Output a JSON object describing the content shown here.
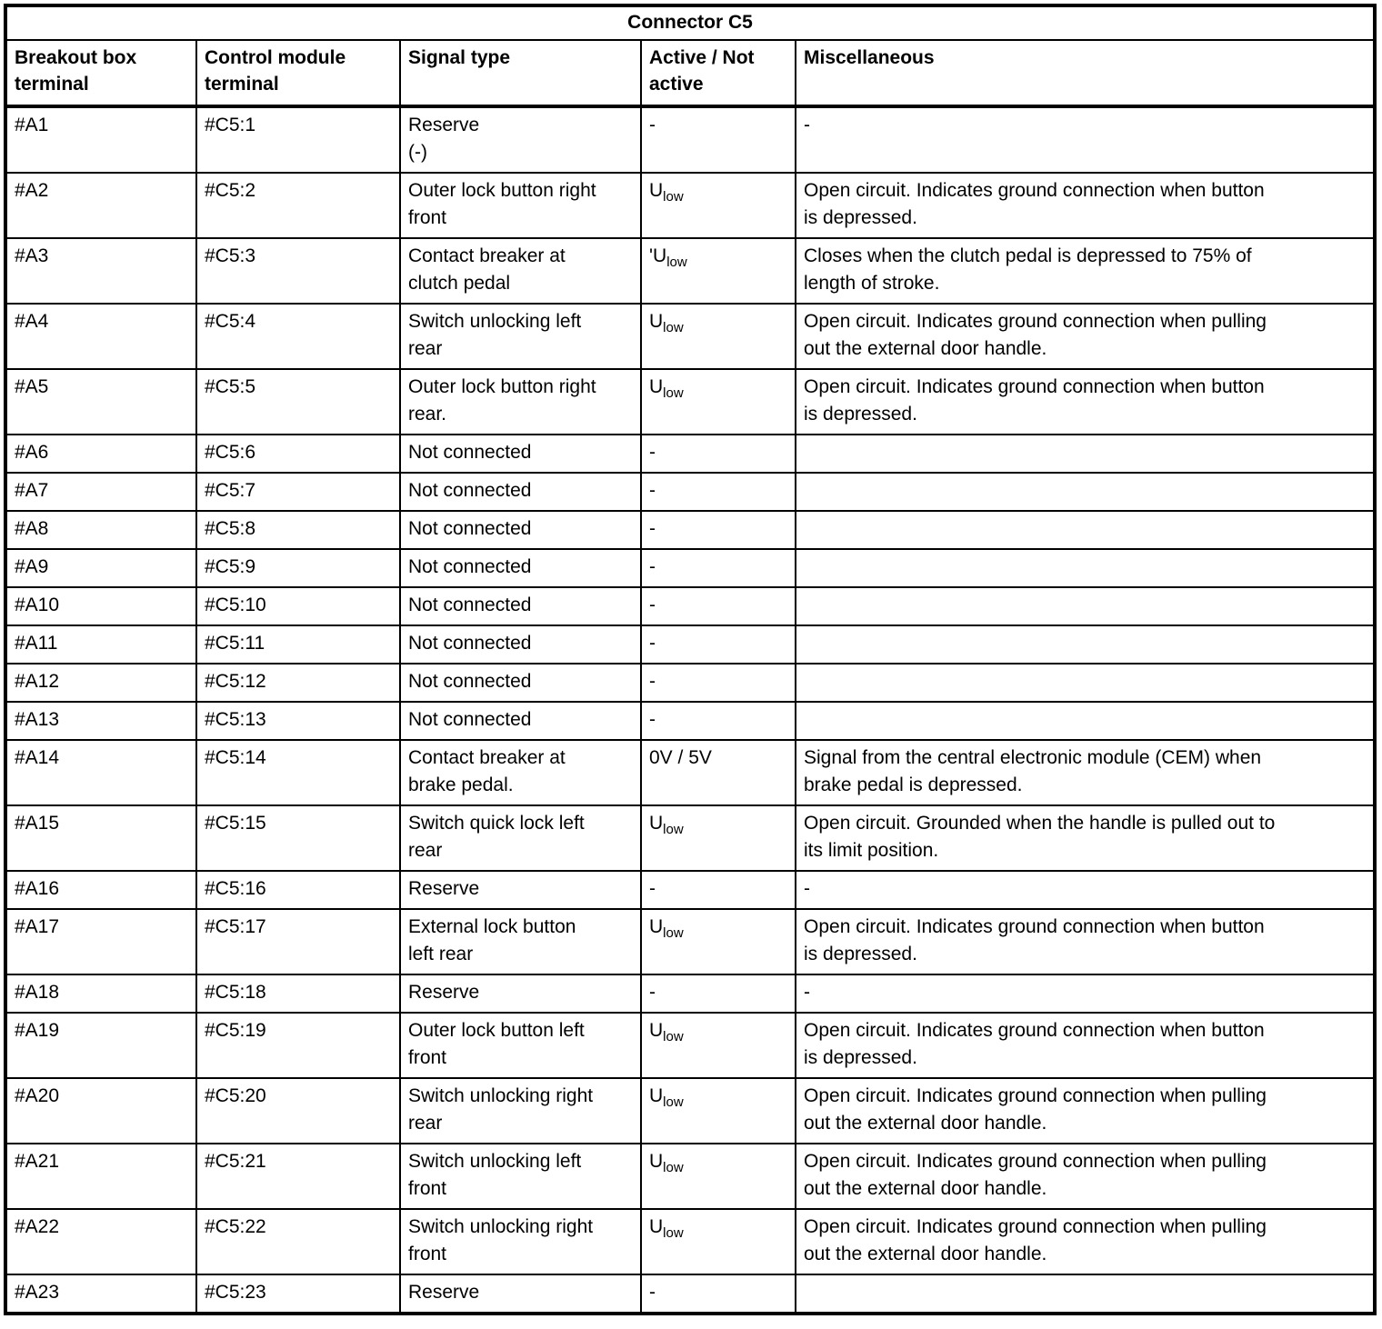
{
  "table": {
    "title": "Connector C5",
    "headers": [
      "Breakout box\nterminal",
      "Control module\nterminal",
      "Signal type",
      "Active / Not\nactive",
      "Miscellaneous"
    ],
    "rows": [
      {
        "breakout": "#A1",
        "module": "#C5:1",
        "signal": "Reserve\n(-)",
        "active": "-",
        "misc": "-"
      },
      {
        "breakout": "#A2",
        "module": "#C5:2",
        "signal": "Outer lock button right\nfront",
        "active": "U~low",
        "misc": "Open circuit. Indicates ground connection when button\nis depressed."
      },
      {
        "breakout": "#A3",
        "module": "#C5:3",
        "signal": "Contact breaker at\nclutch pedal",
        "active": "'U~low",
        "misc": "Closes when the clutch pedal is depressed to 75% of\nlength of stroke."
      },
      {
        "breakout": "#A4",
        "module": "#C5:4",
        "signal": "Switch unlocking left\nrear",
        "active": "U~low",
        "misc": "Open circuit. Indicates ground connection when pulling\nout the external door handle."
      },
      {
        "breakout": "#A5",
        "module": "#C5:5",
        "signal": "Outer lock button right\nrear.",
        "active": "U~low",
        "misc": "Open circuit. Indicates ground connection when button\nis depressed."
      },
      {
        "breakout": "#A6",
        "module": "#C5:6",
        "signal": "Not connected",
        "active": "-",
        "misc": ""
      },
      {
        "breakout": "#A7",
        "module": "#C5:7",
        "signal": "Not connected",
        "active": "-",
        "misc": ""
      },
      {
        "breakout": "#A8",
        "module": "#C5:8",
        "signal": "Not connected",
        "active": "-",
        "misc": ""
      },
      {
        "breakout": "#A9",
        "module": "#C5:9",
        "signal": "Not connected",
        "active": "-",
        "misc": ""
      },
      {
        "breakout": "#A10",
        "module": "#C5:10",
        "signal": "Not connected",
        "active": "-",
        "misc": ""
      },
      {
        "breakout": "#A11",
        "module": "#C5:11",
        "signal": "Not connected",
        "active": "-",
        "misc": ""
      },
      {
        "breakout": "#A12",
        "module": "#C5:12",
        "signal": "Not connected",
        "active": "-",
        "misc": ""
      },
      {
        "breakout": "#A13",
        "module": "#C5:13",
        "signal": "Not connected",
        "active": "-",
        "misc": ""
      },
      {
        "breakout": "#A14",
        "module": "#C5:14",
        "signal": "Contact breaker at\nbrake pedal.",
        "active": "0V / 5V",
        "misc": "Signal from the central electronic module (CEM) when\nbrake pedal is depressed."
      },
      {
        "breakout": "#A15",
        "module": "#C5:15",
        "signal": "Switch quick lock left\nrear",
        "active": "U~low",
        "misc": "Open circuit. Grounded when the handle is pulled out to\nits limit position."
      },
      {
        "breakout": "#A16",
        "module": "#C5:16",
        "signal": "Reserve",
        "active": "-",
        "misc": "-"
      },
      {
        "breakout": "#A17",
        "module": "#C5:17",
        "signal": "External lock button\nleft rear",
        "active": "U~low",
        "misc": "Open circuit. Indicates ground connection when button\nis depressed."
      },
      {
        "breakout": "#A18",
        "module": "#C5:18",
        "signal": "Reserve",
        "active": "-",
        "misc": "-"
      },
      {
        "breakout": "#A19",
        "module": "#C5:19",
        "signal": "Outer lock button left\nfront",
        "active": "U~low",
        "misc": "Open circuit. Indicates ground connection when button\nis depressed."
      },
      {
        "breakout": "#A20",
        "module": "#C5:20",
        "signal": "Switch unlocking right\nrear",
        "active": "U~low",
        "misc": "Open circuit. Indicates ground connection when pulling\nout the external door handle."
      },
      {
        "breakout": "#A21",
        "module": "#C5:21",
        "signal": "Switch unlocking left\nfront",
        "active": "U~low",
        "misc": "Open circuit. Indicates ground connection when pulling\nout the external door handle."
      },
      {
        "breakout": "#A22",
        "module": "#C5:22",
        "signal": "Switch unlocking right\nfront",
        "active": "U~low",
        "misc": "Open circuit. Indicates ground connection when pulling\nout the external door handle."
      },
      {
        "breakout": "#A23",
        "module": "#C5:23",
        "signal": "Reserve",
        "active": "-",
        "misc": ""
      }
    ]
  },
  "colors": {
    "border": "#000000",
    "text": "#000000",
    "background": "#ffffff"
  }
}
